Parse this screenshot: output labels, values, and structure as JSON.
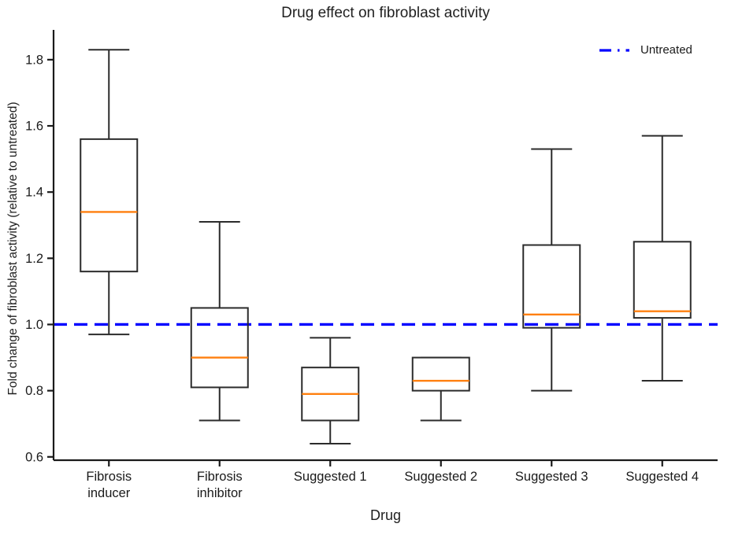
{
  "figure": {
    "background": "#ffffff"
  },
  "chart_data": {
    "type": "boxplot",
    "title": "Drug effect on fibroblast activity",
    "xlabel": "Drug",
    "ylabel": "Fold change of fibroblast activity (relative to untreated)",
    "categories": [
      "Fibrosis inducer",
      "Fibrosis inhibitor",
      "Suggested 1",
      "Suggested 2",
      "Suggested 3",
      "Suggested 4"
    ],
    "tick_labels": [
      [
        "Fibrosis",
        "inducer"
      ],
      [
        "Fibrosis",
        "inhibitor"
      ],
      [
        "Suggested 1"
      ],
      [
        "Suggested 2"
      ],
      [
        "Suggested 3"
      ],
      [
        "Suggested 4"
      ]
    ],
    "series": [
      {
        "name": "Fibrosis inducer",
        "whislo": 0.97,
        "q1": 1.16,
        "med": 1.34,
        "q3": 1.56,
        "whishi": 1.83
      },
      {
        "name": "Fibrosis inhibitor",
        "whislo": 0.71,
        "q1": 0.81,
        "med": 0.9,
        "q3": 1.05,
        "whishi": 1.31
      },
      {
        "name": "Suggested 1",
        "whislo": 0.64,
        "q1": 0.71,
        "med": 0.79,
        "q3": 0.87,
        "whishi": 0.96
      },
      {
        "name": "Suggested 2",
        "whislo": 0.71,
        "q1": 0.8,
        "med": 0.83,
        "q3": 0.9,
        "whishi": 0.9
      },
      {
        "name": "Suggested 3",
        "whislo": 0.8,
        "q1": 0.99,
        "med": 1.03,
        "q3": 1.24,
        "whishi": 1.53
      },
      {
        "name": "Suggested 4",
        "whislo": 0.83,
        "q1": 1.02,
        "med": 1.04,
        "q3": 1.25,
        "whishi": 1.57
      }
    ],
    "reference_line": {
      "value": 1.0,
      "label": "Untreated",
      "style": "dash-dot",
      "color": "#0000ff"
    },
    "yticks": [
      "0.6",
      "0.8",
      "1.0",
      "1.2",
      "1.4",
      "1.6",
      "1.8"
    ],
    "ylim": [
      0.59,
      1.89
    ],
    "grid": false,
    "legend_position": "upper right",
    "colors": {
      "box_edge": "#2b2b2b",
      "median": "#ff7f0e",
      "reference": "#0000ff",
      "text": "#1a1a1a"
    }
  }
}
